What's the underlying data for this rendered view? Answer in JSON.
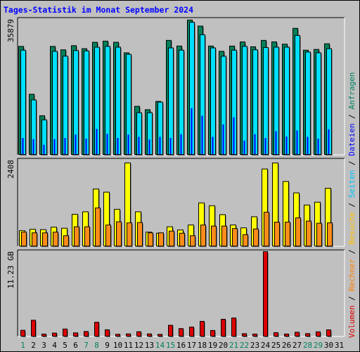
{
  "title": "Tages-Statistik im Monat September 2024",
  "colors": {
    "background": "#c0c0c0",
    "title": "#0000ff",
    "anfragen": "#00805a",
    "dateien": "#0000ff",
    "seiten": "#00e0ff",
    "besuche": "#ffff00",
    "rechner": "#ff8c1a",
    "volumen": "#dd0000",
    "weekday_label": "#000000",
    "weekend_label": "#008060"
  },
  "legend": [
    {
      "text": "Volumen",
      "color": "#dd0000"
    },
    {
      "text": "Rechner",
      "color": "#ff8000"
    },
    {
      "text": "Besuche",
      "color": "#ffc000"
    },
    {
      "text": "Seiten",
      "color": "#00c0ff"
    },
    {
      "text": "Dateien",
      "color": "#0000ff"
    },
    {
      "text": "Anfragen",
      "color": "#008060"
    }
  ],
  "legend_separator": "/",
  "chart_data": {
    "type": "bar",
    "categories": [
      "1",
      "2",
      "3",
      "4",
      "5",
      "6",
      "7",
      "8",
      "9",
      "10",
      "11",
      "12",
      "13",
      "14",
      "15",
      "16",
      "17",
      "18",
      "19",
      "20",
      "21",
      "22",
      "23",
      "24",
      "25",
      "26",
      "27",
      "28",
      "29",
      "30",
      "31"
    ],
    "weekend_days": [
      "1",
      "7",
      "8",
      "14",
      "15",
      "21",
      "22",
      "28",
      "29"
    ],
    "panels": [
      {
        "name": "hits",
        "ymax_label": "35879",
        "ymax": 35879,
        "series": [
          {
            "name": "Anfragen",
            "values": [
              28700,
              16000,
              10300,
              28700,
              27800,
              28900,
              28100,
              29800,
              30100,
              29800,
              27000,
              12800,
              11900,
              14100,
              30300,
              28800,
              35700,
              34100,
              28800,
              27400,
              28800,
              29900,
              28600,
              30300,
              29900,
              29300,
              33500,
              27700,
              27900,
              29400,
              0
            ]
          },
          {
            "name": "Seiten",
            "values": [
              27700,
              14500,
              9200,
              27400,
              26100,
              27600,
              27500,
              28500,
              28700,
              28500,
              26600,
              11100,
              11100,
              13900,
              28300,
              27700,
              35100,
              31800,
              28300,
              26100,
              27700,
              28700,
              27800,
              28400,
              28500,
              28500,
              31600,
              27200,
              27000,
              28100,
              0
            ]
          },
          {
            "name": "Dateien",
            "values": [
              4300,
              4000,
              2500,
              4000,
              4300,
              5200,
              4100,
              6700,
              5400,
              4300,
              5200,
              4600,
              3900,
              4600,
              4300,
              5300,
              12200,
              10200,
              4600,
              7900,
              9800,
              3600,
              5300,
              4300,
              6100,
              4700,
              6300,
              4600,
              4100,
              6600,
              0
            ]
          }
        ]
      },
      {
        "name": "visits",
        "ymax_label": "2408",
        "ymax": 2408,
        "series": [
          {
            "name": "Besuche",
            "values": [
              430,
              470,
              460,
              530,
              500,
              890,
              960,
              1600,
              1510,
              1030,
              2330,
              960,
              390,
              360,
              540,
              450,
              590,
              1210,
              1130,
              880,
              590,
              510,
              820,
              2160,
              2330,
              1810,
              1490,
              1150,
              1230,
              1620,
              0
            ]
          },
          {
            "name": "Rechner",
            "values": [
              390,
              370,
              370,
              390,
              290,
              540,
              540,
              1070,
              590,
              680,
              650,
              660,
              370,
              370,
              420,
              360,
              290,
              590,
              560,
              560,
              490,
              320,
              480,
              950,
              670,
              670,
              790,
              700,
              640,
              650,
              0
            ]
          }
        ]
      },
      {
        "name": "volume",
        "ymax_label": "11.23 GB",
        "ymax": 11.23,
        "series": [
          {
            "name": "Volumen",
            "values": [
              0.78,
              2.12,
              0.28,
              0.41,
              0.95,
              0.44,
              0.62,
              1.85,
              0.85,
              0.25,
              0.3,
              0.59,
              0.3,
              0.24,
              1.45,
              1.01,
              1.21,
              1.97,
              0.76,
              2.25,
              2.42,
              0.33,
              0.28,
              11.23,
              0.47,
              0.29,
              0.52,
              0.34,
              0.58,
              0.84,
              0
            ]
          }
        ]
      }
    ]
  }
}
